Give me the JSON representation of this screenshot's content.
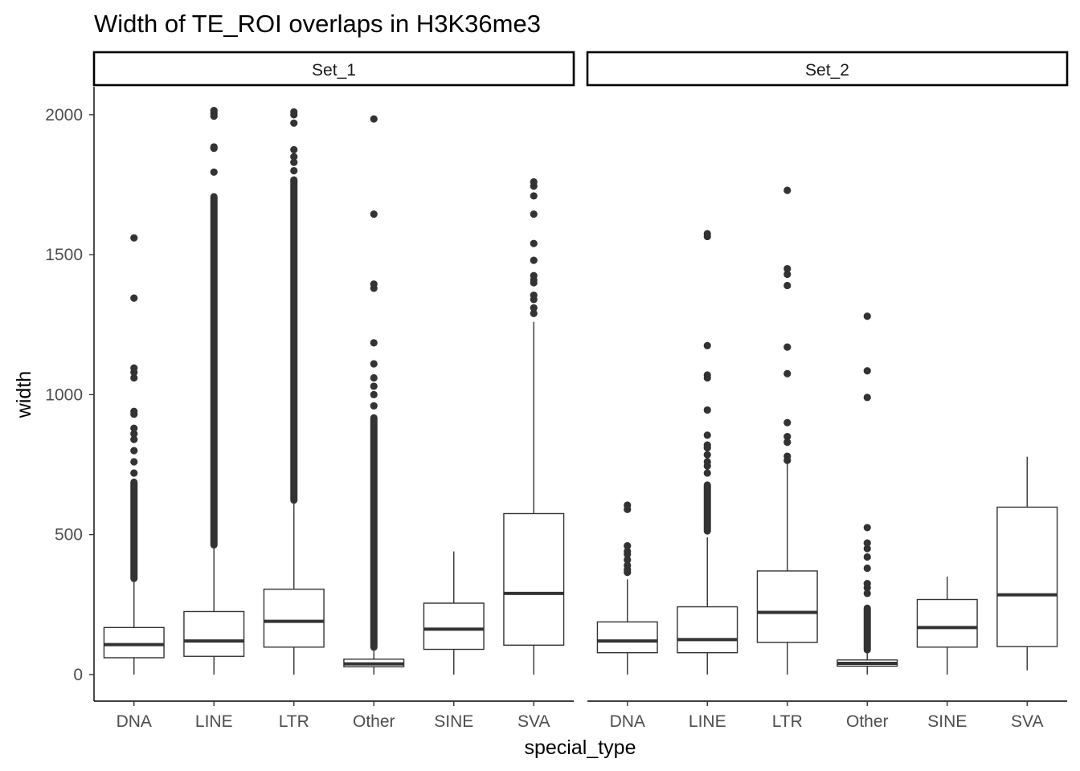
{
  "chart_data": {
    "type": "boxplot",
    "title": "Width of TE_ROI overlaps in H3K36me3",
    "xlabel": "special_type",
    "ylabel": "width",
    "ylim": [
      -95,
      2100
    ],
    "yticks": [
      0,
      500,
      1000,
      1500,
      2000
    ],
    "categories": [
      "DNA",
      "LINE",
      "LTR",
      "Other",
      "SINE",
      "SVA"
    ],
    "colors": {
      "box_stroke": "#333333",
      "outlier": "#333333",
      "axis": "#000000"
    },
    "panels": [
      {
        "name": "Set_1",
        "boxes": [
          {
            "category": "DNA",
            "ymin": 0,
            "q1": 60,
            "median": 107,
            "q3": 168,
            "ymax": 330,
            "dense_outlier_range": [
              330,
              700
            ],
            "outliers": [
              720,
              760,
              800,
              840,
              860,
              880,
              930,
              940,
              1060,
              1080,
              1095,
              1345,
              1560
            ]
          },
          {
            "category": "LINE",
            "ymin": 0,
            "q1": 65,
            "median": 120,
            "q3": 225,
            "ymax": 450,
            "dense_outlier_range": [
              450,
              1720
            ],
            "outliers": [
              1795,
              1880,
              1885,
              1995,
              2005,
              2015
            ]
          },
          {
            "category": "LTR",
            "ymin": 0,
            "q1": 98,
            "median": 190,
            "q3": 305,
            "ymax": 610,
            "dense_outlier_range": [
              610,
              1780
            ],
            "outliers": [
              1800,
              1830,
              1850,
              1875,
              1970,
              2000,
              2010
            ]
          },
          {
            "category": "Other",
            "ymin": 0,
            "q1": 28,
            "median": 38,
            "q3": 55,
            "ymax": 85,
            "dense_outlier_range": [
              85,
              930
            ],
            "outliers": [
              960,
              1000,
              1030,
              1060,
              1110,
              1185,
              1380,
              1395,
              1645,
              1985
            ]
          },
          {
            "category": "SINE",
            "ymin": 0,
            "q1": 90,
            "median": 162,
            "q3": 255,
            "ymax": 440,
            "dense_outlier_range": null,
            "outliers": []
          },
          {
            "category": "SVA",
            "ymin": 0,
            "q1": 105,
            "median": 290,
            "q3": 575,
            "ymax": 1260,
            "dense_outlier_range": null,
            "outliers": [
              1290,
              1310,
              1340,
              1355,
              1400,
              1410,
              1425,
              1480,
              1540,
              1645,
              1710,
              1745,
              1760
            ]
          }
        ]
      },
      {
        "name": "Set_2",
        "boxes": [
          {
            "category": "DNA",
            "ymin": 0,
            "q1": 78,
            "median": 120,
            "q3": 188,
            "ymax": 340,
            "dense_outlier_range": null,
            "outliers": [
              365,
              375,
              390,
              410,
              430,
              440,
              460,
              590,
              605
            ]
          },
          {
            "category": "LINE",
            "ymin": 0,
            "q1": 78,
            "median": 125,
            "q3": 242,
            "ymax": 490,
            "dense_outlier_range": [
              500,
              690
            ],
            "outliers": [
              720,
              745,
              760,
              785,
              810,
              820,
              855,
              945,
              1060,
              1070,
              1175,
              1565,
              1575
            ]
          },
          {
            "category": "LTR",
            "ymin": 0,
            "q1": 115,
            "median": 222,
            "q3": 370,
            "ymax": 760,
            "dense_outlier_range": null,
            "outliers": [
              765,
              780,
              830,
              850,
              900,
              1075,
              1170,
              1390,
              1430,
              1450,
              1730
            ]
          },
          {
            "category": "Other",
            "ymin": 0,
            "q1": 30,
            "median": 40,
            "q3": 52,
            "ymax": 75,
            "dense_outlier_range": [
              75,
              250
            ],
            "outliers": [
              290,
              310,
              325,
              380,
              420,
              450,
              470,
              525,
              990,
              1085,
              1280
            ]
          },
          {
            "category": "SINE",
            "ymin": 0,
            "q1": 98,
            "median": 168,
            "q3": 268,
            "ymax": 350,
            "dense_outlier_range": null,
            "outliers": []
          },
          {
            "category": "SVA",
            "ymin": 15,
            "q1": 100,
            "median": 285,
            "q3": 598,
            "ymax": 778,
            "dense_outlier_range": null,
            "outliers": []
          }
        ]
      }
    ]
  }
}
